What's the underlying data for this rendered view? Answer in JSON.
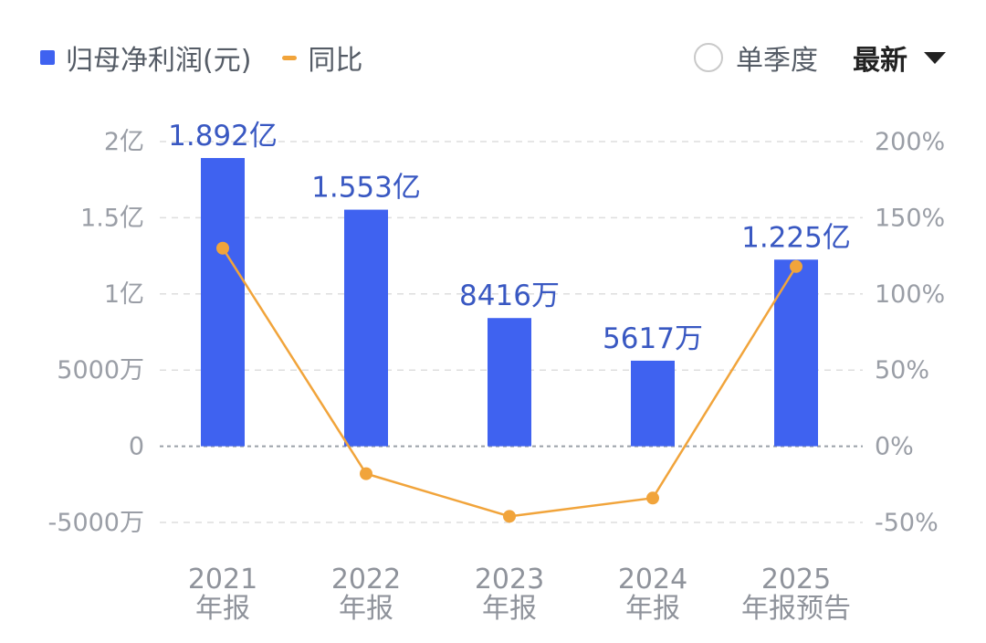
{
  "legend": {
    "bar_series": "归母净利润(元)",
    "line_series": "同比"
  },
  "controls": {
    "single_quarter": "单季度",
    "period": "最新"
  },
  "colors": {
    "bar": "#3f62f0",
    "line": "#f1a43b",
    "grid": "#dedede",
    "bar_label": "#3958c2"
  },
  "chart_data": {
    "type": "bar",
    "categories": [
      [
        "2021",
        "年报"
      ],
      [
        "2022",
        "年报"
      ],
      [
        "2023",
        "年报"
      ],
      [
        "2024",
        "年报"
      ],
      [
        "2025",
        "年报预告"
      ]
    ],
    "series": [
      {
        "name": "归母净利润(元)",
        "type": "bar",
        "axis": "left",
        "values": [
          189200000,
          155300000,
          84160000,
          56170000,
          122500000
        ],
        "labels": [
          "1.892亿",
          "1.553亿",
          "8416万",
          "5617万",
          "1.225亿"
        ]
      },
      {
        "name": "同比",
        "type": "line",
        "axis": "right",
        "values": [
          130,
          -18,
          -46,
          -34,
          118
        ]
      }
    ],
    "y_left": {
      "ticks": [
        200000000,
        150000000,
        100000000,
        50000000,
        0,
        -50000000
      ],
      "tick_labels": [
        "2亿",
        "1.5亿",
        "1亿",
        "5000万",
        "0",
        "-5000万"
      ],
      "ylim": [
        -50000000,
        200000000
      ]
    },
    "y_right": {
      "ticks": [
        200,
        150,
        100,
        50,
        0,
        -50
      ],
      "tick_labels": [
        "200%",
        "150%",
        "100%",
        "50%",
        "0%",
        "-50%"
      ],
      "ylim": [
        -50,
        200
      ]
    },
    "grid": true,
    "legend_position": "top-left"
  }
}
